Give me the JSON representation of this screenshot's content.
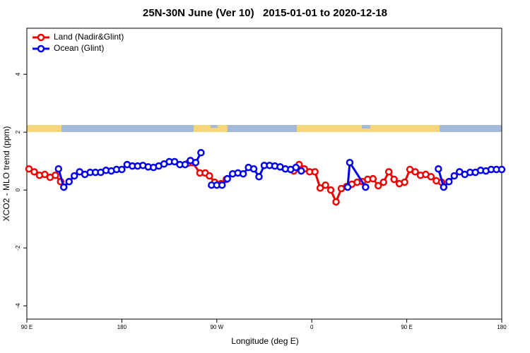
{
  "chart_data": {
    "type": "line",
    "title": "25N-30N June (Ver 10)   2015-01-01 to 2020-12-18",
    "x_label": "Longitude (deg E)",
    "y_label": "XCO2 - MLO trend (ppm)",
    "xlim": [
      90,
      540
    ],
    "ylim": [
      -4.46,
      5.59
    ],
    "xticks": [
      {
        "value": 90,
        "label": "90 E"
      },
      180,
      {
        "value": 270,
        "label": "90 W"
      },
      {
        "value": 360,
        "label": "0"
      },
      {
        "value": 450,
        "label": "90 E"
      },
      {
        "value": 540,
        "label": "180"
      }
    ],
    "yticks": [
      -4,
      -2,
      0,
      2,
      4
    ],
    "legend": "top-left",
    "series": [
      {
        "name": "Land (Nadir&Glint)",
        "color": "#ee0000",
        "x": [
          92,
          97,
          102,
          107,
          112,
          117,
          122,
          null,
          243,
          247,
          254,
          259,
          263,
          268,
          274,
          279,
          null,
          343,
          348,
          353,
          358,
          363,
          368,
          373,
          378,
          383,
          388,
          393,
          398,
          403,
          408,
          413,
          418,
          423,
          428,
          433,
          438,
          443,
          448,
          453,
          458,
          463,
          468,
          473,
          478,
          483
        ],
        "values": [
          0.73,
          0.63,
          0.51,
          0.54,
          0.44,
          0.51,
          0.29,
          null,
          0.93,
          0.95,
          0.59,
          0.59,
          0.49,
          0.27,
          0.22,
          0.37,
          null,
          0.66,
          0.88,
          0.73,
          0.63,
          0.63,
          0.07,
          0.17,
          0,
          -0.41,
          0.05,
          0.12,
          0.2,
          0.27,
          0.29,
          0.37,
          0.39,
          0.15,
          0.27,
          0.63,
          0.37,
          0.22,
          0.27,
          0.71,
          0.63,
          0.51,
          0.54,
          0.46,
          0.32,
          0.27
        ]
      },
      {
        "name": "Ocean (Glint)",
        "color": "#0000ee",
        "x": [
          120,
          125,
          130,
          135,
          140,
          145,
          150,
          155,
          160,
          165,
          170,
          175,
          180,
          185,
          190,
          195,
          200,
          205,
          210,
          215,
          220,
          225,
          230,
          235,
          240,
          245,
          250,
          255,
          null,
          265,
          270,
          275,
          280,
          285,
          290,
          295,
          300,
          305,
          310,
          315,
          320,
          325,
          330,
          335,
          340,
          345,
          350,
          null,
          394,
          396,
          411,
          null,
          480,
          485,
          490,
          495,
          500,
          505,
          510,
          515,
          520,
          525,
          530,
          535,
          540
        ],
        "values": [
          0.73,
          0.1,
          0.29,
          0.49,
          0.63,
          0.54,
          0.61,
          0.61,
          0.61,
          0.68,
          0.66,
          0.71,
          0.71,
          0.88,
          0.83,
          0.83,
          0.85,
          0.8,
          0.78,
          0.83,
          0.9,
          0.98,
          0.98,
          0.88,
          0.88,
          1.02,
          0.95,
          1.29,
          null,
          0.17,
          0.17,
          0.17,
          0.39,
          0.56,
          0.59,
          0.56,
          0.78,
          0.73,
          0.46,
          0.85,
          0.85,
          0.83,
          0.8,
          0.73,
          0.71,
          0.78,
          0.66,
          null,
          0.1,
          0.95,
          0.1,
          null,
          0.73,
          0.1,
          0.29,
          0.49,
          0.63,
          0.54,
          0.61,
          0.61,
          0.68,
          0.66,
          0.71,
          0.71,
          0.71
        ]
      }
    ]
  }
}
